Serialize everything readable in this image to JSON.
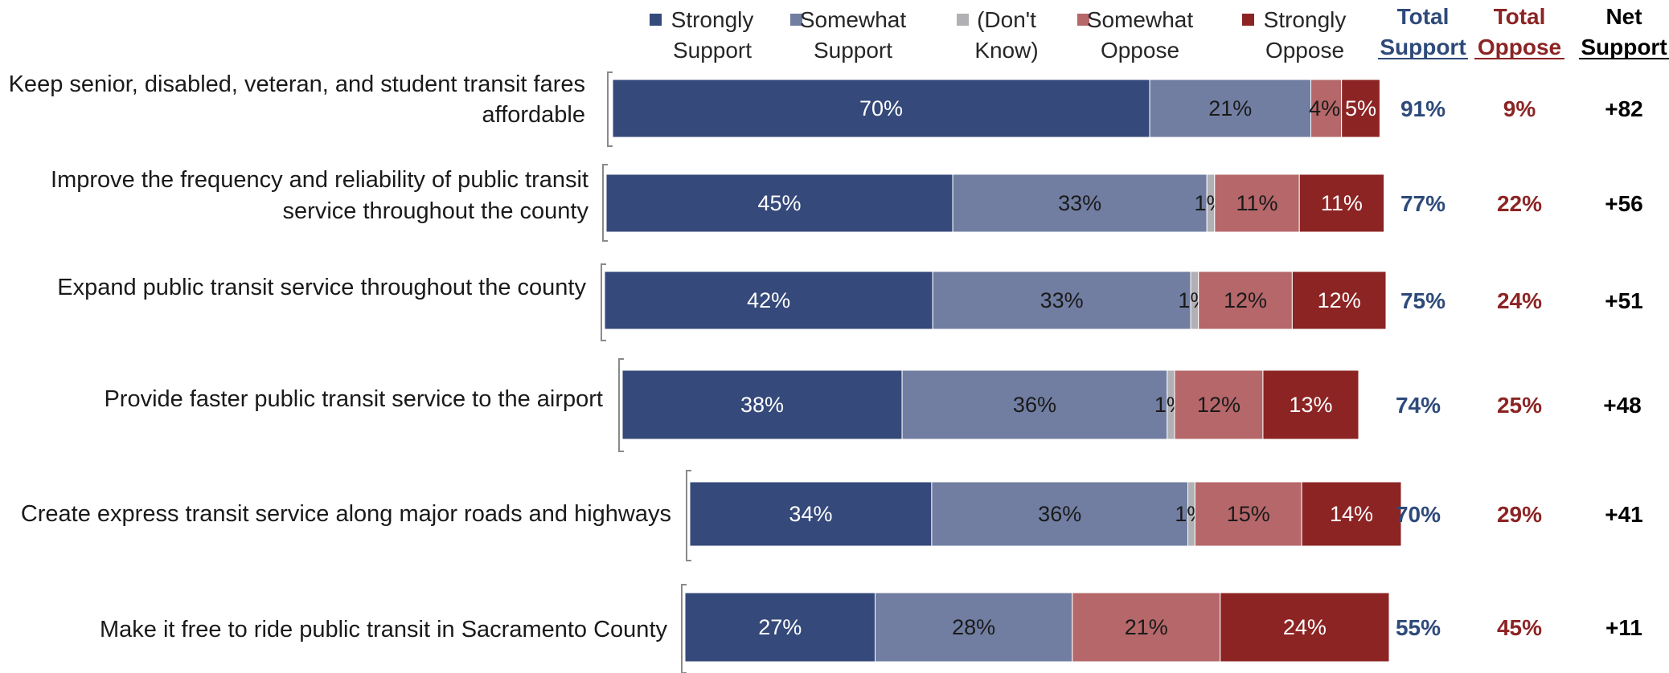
{
  "chart_data": {
    "type": "bar",
    "orientation": "horizontal",
    "stacked": true,
    "title": "",
    "xlabel": "",
    "ylabel": "",
    "grid": false,
    "legend_position": "top",
    "categories": [
      [
        "Keep senior, disabled, veteran, and student transit fares",
        "affordable"
      ],
      [
        "Improve the frequency and reliability of public transit",
        "service throughout the county"
      ],
      [
        "Expand public transit service throughout the county"
      ],
      [
        "Provide faster public transit service to the airport"
      ],
      [
        "Create express transit service along major roads and highways"
      ],
      [
        "Make it free to ride public transit in Sacramento County"
      ]
    ],
    "series": [
      {
        "name": "Strongly Support",
        "legend_lines": [
          "Strongly",
          "Support"
        ],
        "color": "#35497a",
        "label_color": "#ffffff",
        "values": [
          70,
          45,
          42,
          38,
          34,
          27
        ]
      },
      {
        "name": "Somewhat Support",
        "legend_lines": [
          "Somewhat",
          "Support"
        ],
        "color": "#717ea2",
        "label_color": "#1a1a1a",
        "values": [
          21,
          33,
          33,
          36,
          36,
          28
        ]
      },
      {
        "name": "(Don't Know)",
        "legend_lines": [
          "(Don't",
          "Know)"
        ],
        "color": "#b0b0b5",
        "label_color": "#1a1a1a",
        "values": [
          0,
          1,
          1,
          1,
          1,
          0
        ]
      },
      {
        "name": "Somewhat Oppose",
        "legend_lines": [
          "Somewhat",
          "Oppose"
        ],
        "color": "#b5676a",
        "label_color": "#1a1a1a",
        "values": [
          4,
          11,
          12,
          12,
          15,
          21
        ]
      },
      {
        "name": "Strongly Oppose",
        "legend_lines": [
          "Strongly",
          "Oppose"
        ],
        "color": "#8c2424",
        "label_color": "#ffffff",
        "values": [
          5,
          11,
          12,
          13,
          14,
          24
        ]
      }
    ],
    "summary_columns": [
      {
        "header": [
          "Total",
          "Support"
        ],
        "color": "#2e4a7a",
        "underline": true,
        "values": [
          "91%",
          "77%",
          "75%",
          "74%",
          "70%",
          "55%"
        ]
      },
      {
        "header": [
          "Total",
          "Oppose"
        ],
        "color": "#8c2424",
        "underline": true,
        "values": [
          "9%",
          "22%",
          "24%",
          "25%",
          "29%",
          "45%"
        ]
      },
      {
        "header": [
          "Net",
          "Support"
        ],
        "color": "#000000",
        "underline": true,
        "values": [
          "+82",
          "+56",
          "+51",
          "+48",
          "+41",
          "+11"
        ]
      }
    ]
  }
}
